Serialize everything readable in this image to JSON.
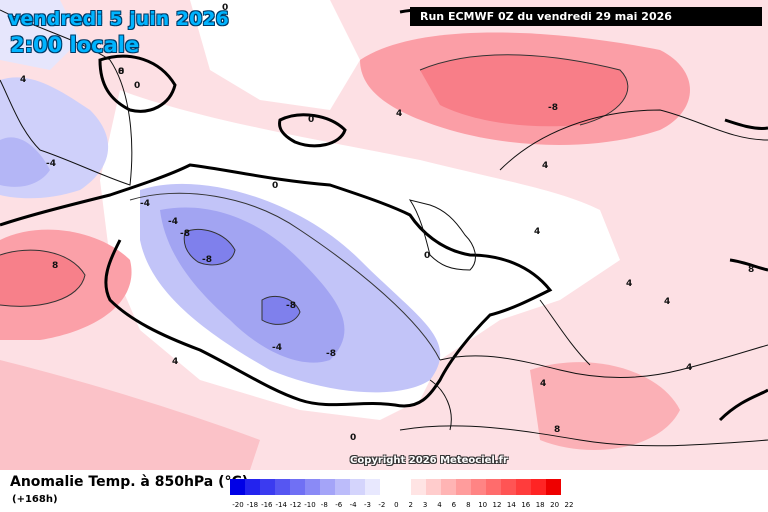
{
  "header": {
    "date": "vendredi 5 juin 2026",
    "time": "2:00 locale",
    "run": "Run ECMWF 0Z du vendredi 29 mai 2026"
  },
  "map": {
    "copyright": "Copyright 2026 Meteociel.fr",
    "contour_labels": [
      "0",
      "0",
      "0",
      "0",
      "0",
      "0",
      "0",
      "4",
      "4",
      "4",
      "4",
      "4",
      "4",
      "4",
      "4",
      "4",
      "-4",
      "-4",
      "-4",
      "-4",
      "-8",
      "-8",
      "-8",
      "-8",
      "-8",
      "8",
      "8",
      "8",
      "8"
    ]
  },
  "footer": {
    "title": "Anomalie Temp. à 850hPa (°C)",
    "lead": "(+168h)"
  },
  "legend": {
    "colors": [
      "#0000e6",
      "#2323ee",
      "#3b3bf0",
      "#5656f2",
      "#7070f4",
      "#8a8af6",
      "#a4a4f8",
      "#bcbcfa",
      "#d4d4fc",
      "#e8e8fe",
      "#ffffff",
      "#ffffff",
      "#ffe4e4",
      "#ffcccc",
      "#ffb4b4",
      "#ff9c9c",
      "#ff8484",
      "#ff6c6c",
      "#ff5454",
      "#ff3c3c",
      "#ff2424",
      "#ee0000"
    ],
    "ticks": [
      "-20",
      "-18",
      "-16",
      "-14",
      "-12",
      "-10",
      "-8",
      "-6",
      "-4",
      "-3",
      "-2",
      "0",
      "2",
      "3",
      "4",
      "6",
      "8",
      "10",
      "12",
      "14",
      "16",
      "18",
      "20",
      "22"
    ]
  }
}
